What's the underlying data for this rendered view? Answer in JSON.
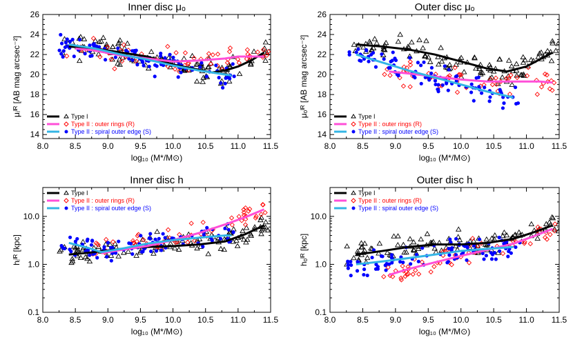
{
  "figure": {
    "colors": {
      "type1": "#000000",
      "rings": "#ff4fd8",
      "rings_points": "#ff0000",
      "spiral": "#33b5e5",
      "spiral_points": "#0000ff"
    }
  },
  "chart_data": [
    {
      "type": "scatter",
      "panel": "top-left",
      "title": "Inner disc μₒ",
      "xlabel": "log₁₀ (M*/M⊙)",
      "ylabel": "μᵢᴵᴿ [AB mag arcsec⁻²]",
      "xlim": [
        8.0,
        11.5
      ],
      "ylim": [
        13.6,
        26.0
      ],
      "y_inverted": false,
      "log_y": false,
      "xticks": [
        "8.0",
        "8.5",
        "9.0",
        "9.5",
        "10.0",
        "10.5",
        "11.0",
        "11.5"
      ],
      "yticks": [
        14,
        16,
        18,
        20,
        22,
        24,
        26
      ],
      "legend_position": "bottom-left",
      "legend": [
        "Type I",
        "Type II : outer rings (R)",
        "Type II : spiral outer edge (S)"
      ],
      "series": [
        {
          "name": "Type I",
          "kind": "line",
          "x": [
            8.4,
            8.8,
            9.2,
            9.6,
            10.0,
            10.3,
            10.6,
            10.8,
            11.0,
            11.2,
            11.4
          ],
          "y": [
            22.8,
            22.6,
            22.2,
            21.8,
            21.0,
            20.6,
            20.2,
            20.4,
            20.8,
            21.4,
            22.2
          ]
        },
        {
          "name": "Type II : outer rings (R)",
          "kind": "line",
          "x": [
            8.5,
            8.8,
            9.2,
            9.6,
            10.0,
            10.4,
            10.8,
            11.0,
            11.4
          ],
          "y": [
            22.6,
            22.4,
            21.9,
            21.6,
            21.3,
            21.4,
            21.6,
            21.8,
            21.8
          ]
        },
        {
          "name": "Type II : spiral outer edge (S)",
          "kind": "line",
          "x": [
            8.4,
            8.8,
            9.2,
            9.6,
            10.0,
            10.4,
            10.8,
            10.9
          ],
          "y": [
            23.0,
            22.6,
            22.0,
            21.5,
            20.9,
            20.4,
            20.0,
            19.9
          ]
        }
      ]
    },
    {
      "type": "scatter",
      "panel": "top-right",
      "title": "Outer disc μₒ",
      "xlabel": "log₁₀ (M*/M⊙)",
      "ylabel": "μₒᴵᴿ [AB mag arcsec⁻²]",
      "xlim": [
        8.0,
        11.5
      ],
      "ylim": [
        13.6,
        26.0
      ],
      "log_y": false,
      "xticks": [
        "8.0",
        "8.5",
        "9.0",
        "9.5",
        "10.0",
        "10.5",
        "11.0",
        "11.5"
      ],
      "yticks": [
        14,
        16,
        18,
        20,
        22,
        24,
        26
      ],
      "legend_position": "bottom-left",
      "legend": [
        "Type I",
        "Type II : outer rings (R)",
        "Type II : spiral outer edge (S)"
      ],
      "series": [
        {
          "name": "Type I",
          "kind": "line",
          "x": [
            8.4,
            8.8,
            9.2,
            9.6,
            10.0,
            10.4,
            10.7,
            11.0,
            11.2,
            11.4
          ],
          "y": [
            23.0,
            22.8,
            22.5,
            22.0,
            21.3,
            20.6,
            20.3,
            20.8,
            21.5,
            22.2
          ]
        },
        {
          "name": "Type II : outer rings (R)",
          "kind": "line",
          "x": [
            8.9,
            9.2,
            9.6,
            10.0,
            10.4,
            10.8,
            11.2,
            11.4
          ],
          "y": [
            20.3,
            20.1,
            19.8,
            19.5,
            19.3,
            19.3,
            19.3,
            19.2
          ]
        },
        {
          "name": "Type II : spiral outer edge (S)",
          "kind": "line",
          "x": [
            8.4,
            8.8,
            9.2,
            9.6,
            10.0,
            10.4,
            10.8
          ],
          "y": [
            22.0,
            21.2,
            20.4,
            19.7,
            19.0,
            18.3,
            17.7
          ]
        }
      ]
    },
    {
      "type": "scatter",
      "panel": "bottom-left",
      "title": "Inner disc h",
      "xlabel": "log₁₀ (M*/M⊙)",
      "ylabel": "hᵢᴵᴿ [kpc]",
      "xlim": [
        8.0,
        11.5
      ],
      "ylim": [
        0.1,
        40
      ],
      "log_y": true,
      "xticks": [
        "8.0",
        "8.5",
        "9.0",
        "9.5",
        "10.0",
        "10.5",
        "11.0",
        "11.5"
      ],
      "yticks": [
        "0.1",
        "1.0",
        "10.0"
      ],
      "legend_position": "top-left",
      "legend": [
        "Type I",
        "Type II : outer rings (R)",
        "Type II : spiral outer edge (S)"
      ],
      "series": [
        {
          "name": "Type I",
          "kind": "line",
          "x": [
            8.4,
            8.8,
            9.2,
            9.6,
            10.0,
            10.4,
            10.8,
            11.1,
            11.4
          ],
          "y": [
            1.6,
            1.8,
            2.1,
            2.3,
            2.4,
            2.6,
            3.0,
            4.2,
            6.5
          ]
        },
        {
          "name": "Type II : outer rings (R)",
          "kind": "line",
          "x": [
            8.9,
            9.2,
            9.6,
            10.0,
            10.4,
            10.8,
            11.1,
            11.4
          ],
          "y": [
            1.7,
            2.0,
            2.4,
            3.2,
            4.5,
            6.8,
            9.5,
            14.0
          ]
        },
        {
          "name": "Type II : spiral outer edge (S)",
          "kind": "line",
          "x": [
            8.4,
            8.7,
            8.9,
            9.2,
            9.6,
            10.0,
            10.4,
            10.8,
            10.9
          ],
          "y": [
            2.8,
            2.2,
            1.8,
            2.1,
            2.7,
            3.2,
            3.6,
            4.0,
            4.0
          ]
        }
      ]
    },
    {
      "type": "scatter",
      "panel": "bottom-right",
      "title": "Outer disc h",
      "xlabel": "log₁₀ (M*/M⊙)",
      "ylabel": "hₒᴵᴿ [kpc]",
      "xlim": [
        8.0,
        11.5
      ],
      "ylim": [
        0.1,
        40
      ],
      "log_y": true,
      "xticks": [
        "8.0",
        "8.5",
        "9.0",
        "9.5",
        "10.0",
        "10.5",
        "11.0",
        "11.5"
      ],
      "yticks": [
        "0.1",
        "1.0",
        "10.0"
      ],
      "legend_position": "top-left",
      "legend": [
        "Type I",
        "Type II : outer rings (R)",
        "Type II : spiral outer edge (S)"
      ],
      "series": [
        {
          "name": "Type I",
          "kind": "line",
          "x": [
            8.4,
            8.8,
            9.2,
            9.6,
            10.0,
            10.4,
            10.8,
            11.1,
            11.4
          ],
          "y": [
            1.6,
            1.9,
            2.3,
            2.6,
            2.6,
            2.8,
            3.4,
            4.6,
            6.5
          ]
        },
        {
          "name": "Type II : outer rings (R)",
          "kind": "line",
          "x": [
            8.9,
            9.2,
            9.6,
            10.0,
            10.4,
            10.8,
            11.1,
            11.4
          ],
          "y": [
            0.6,
            0.8,
            1.1,
            1.5,
            2.0,
            2.7,
            3.8,
            5.5
          ]
        },
        {
          "name": "Type II : spiral outer edge (S)",
          "kind": "line",
          "x": [
            8.4,
            8.8,
            9.2,
            9.6,
            10.0,
            10.4,
            10.8
          ],
          "y": [
            1.0,
            1.15,
            1.35,
            1.6,
            1.9,
            2.1,
            2.3
          ]
        }
      ]
    }
  ]
}
